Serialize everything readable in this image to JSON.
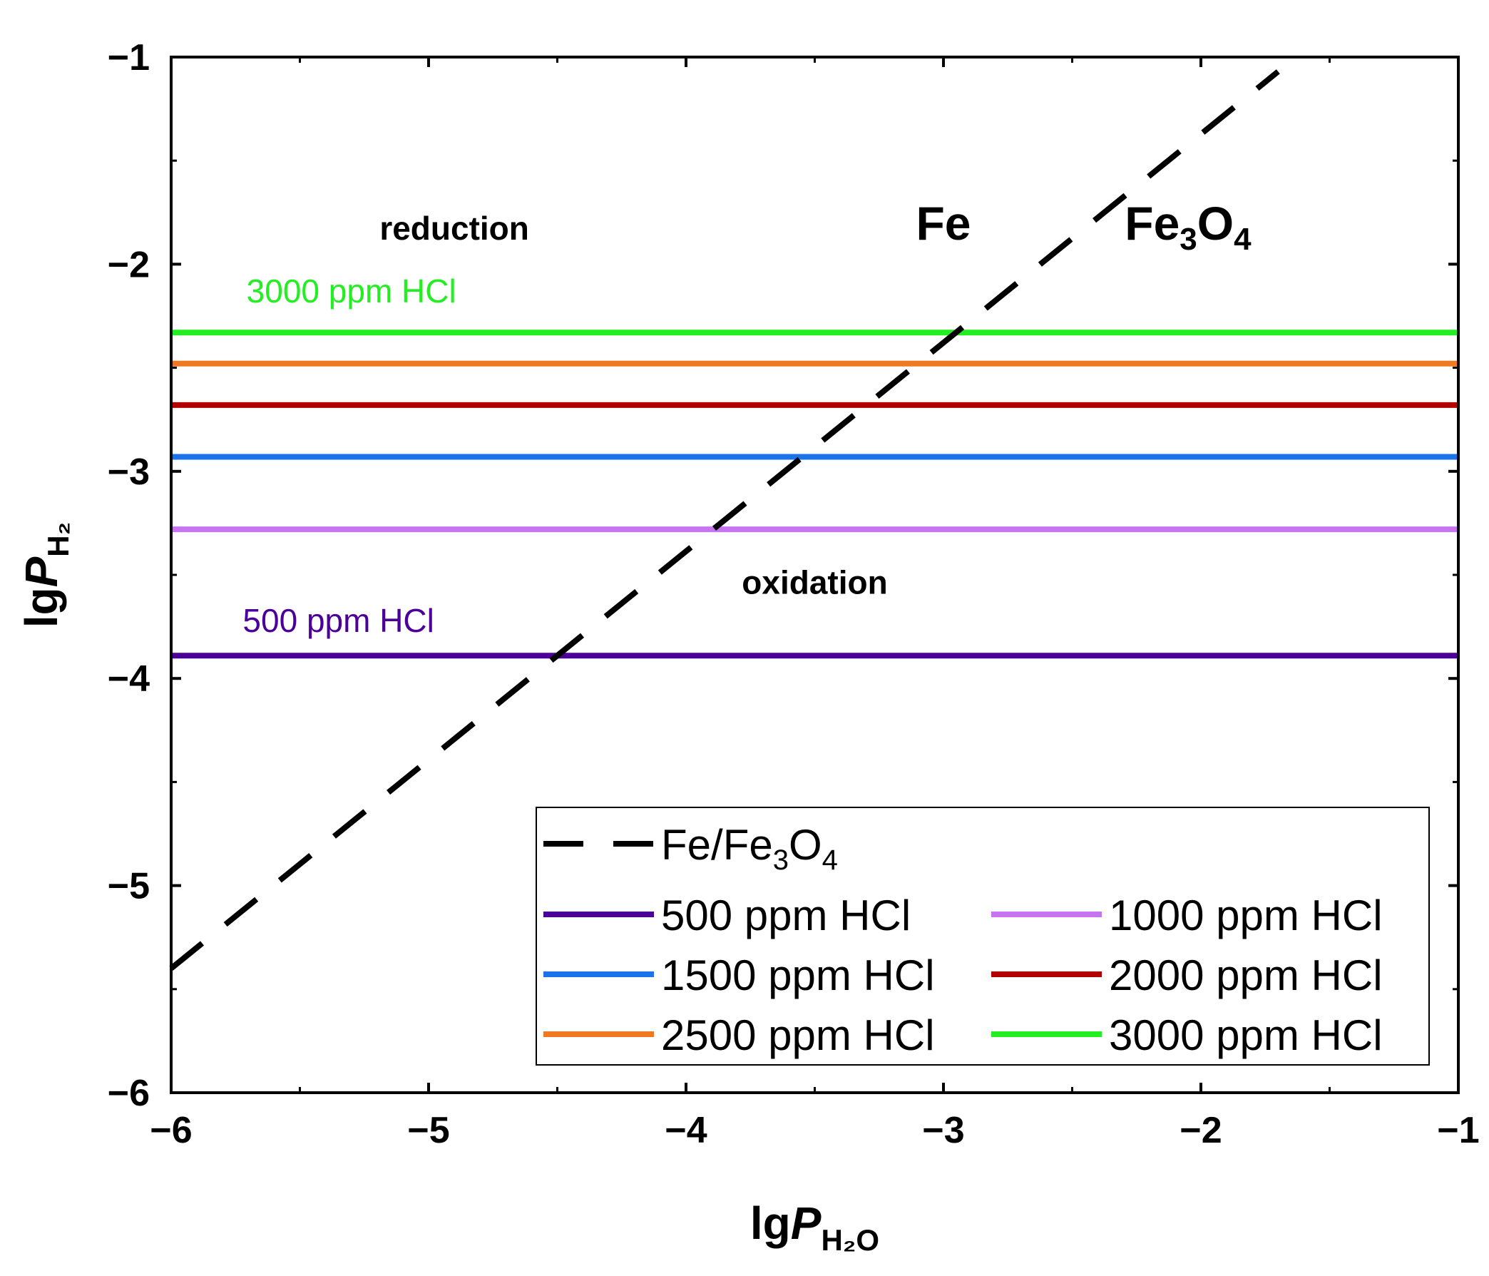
{
  "chart_data": {
    "type": "line",
    "xlabel": {
      "prefix": "lg",
      "main": "P",
      "sub": "H₂O"
    },
    "ylabel": {
      "prefix": "lg",
      "main": "P",
      "sub": "H₂"
    },
    "xlim": [
      -6,
      -1
    ],
    "ylim": [
      -6,
      -1
    ],
    "xticks": [
      -6,
      -5,
      -4,
      -3,
      -2,
      -1
    ],
    "yticks": [
      -6,
      -5,
      -4,
      -3,
      -2,
      -1
    ],
    "xtick_labels": [
      "−6",
      "−5",
      "−4",
      "−3",
      "−2",
      "−1"
    ],
    "ytick_labels": [
      "−6",
      "−5",
      "−4",
      "−3",
      "−2",
      "−1"
    ],
    "grid": false,
    "legend_position": "bottom-right",
    "equilibrium_line": {
      "name": "Fe/Fe₃O₄",
      "legend_main": "Fe/Fe",
      "legend_sub": "3",
      "legend_tail": "O",
      "legend_sub2": "4",
      "color": "#000000",
      "style": "dashed",
      "x": [
        -6,
        -1.7
      ],
      "y": [
        -5.4,
        -1.07
      ]
    },
    "series": [
      {
        "name": "500 ppm HCl",
        "y": -3.89,
        "color": "#4B0099"
      },
      {
        "name": "1000 ppm HCl",
        "y": -3.28,
        "color": "#C774F0"
      },
      {
        "name": "1500 ppm HCl",
        "y": -2.93,
        "color": "#1A73E8"
      },
      {
        "name": "2000 ppm HCl",
        "y": -2.68,
        "color": "#B00000"
      },
      {
        "name": "2500 ppm HCl",
        "y": -2.48,
        "color": "#F07820"
      },
      {
        "name": "3000 ppm HCl",
        "y": -2.33,
        "color": "#22EE22"
      }
    ],
    "annotations": [
      {
        "text": "reduction",
        "x": -4.9,
        "y": -1.82
      },
      {
        "text": "oxidation",
        "x": -3.5,
        "y": -3.53
      },
      {
        "text": "Fe",
        "x": -3.0,
        "y": -1.82
      },
      {
        "text": "Fe₃O₄",
        "main": "Fe",
        "sub": "3",
        "tail": "O",
        "sub2": "4",
        "x": -2.05,
        "y": -1.82
      }
    ],
    "line_labels": [
      {
        "text": "3000 ppm HCl",
        "x": -5.3,
        "y": -2.13,
        "color": "#22EE22"
      },
      {
        "text": "500 ppm HCl",
        "x": -5.35,
        "y": -3.72,
        "color": "#4B0099"
      }
    ]
  }
}
